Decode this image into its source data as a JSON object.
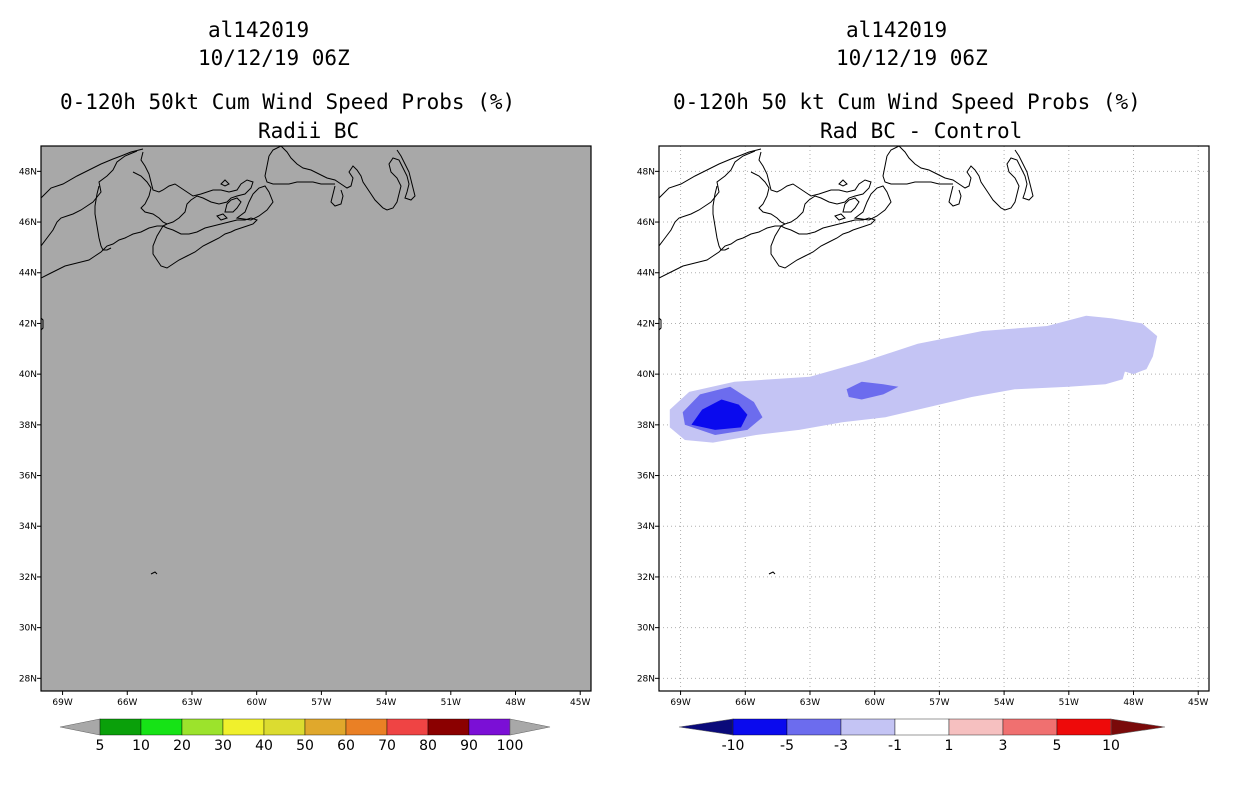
{
  "chart_data": [
    {
      "type": "heatmap",
      "storm_id": "al142019",
      "valid_time": "10/12/19 06Z",
      "title": "0-120h 50kt Cum Wind Speed Probs (%)",
      "subtitle": "Radii BC",
      "lon_ticks": [
        "69W",
        "66W",
        "63W",
        "60W",
        "57W",
        "54W",
        "51W",
        "48W",
        "45W"
      ],
      "lat_ticks": [
        "48N",
        "46N",
        "44N",
        "42N",
        "40N",
        "38N",
        "36N",
        "34N",
        "32N",
        "30N",
        "28N"
      ],
      "lon_range": [
        -70,
        -44.5
      ],
      "lat_range": [
        27.5,
        49
      ],
      "field_fill": "#a8a8a8",
      "field_description_value": "below 5% everywhere",
      "grid": false,
      "colorbar": {
        "levels": [
          "5",
          "10",
          "20",
          "30",
          "40",
          "50",
          "60",
          "70",
          "80",
          "90",
          "100"
        ],
        "colors": [
          "#a8a8a8",
          "#0aa00a",
          "#16e316",
          "#9ce32c",
          "#f0f02c",
          "#dcdc30",
          "#e0a82c",
          "#ea8025",
          "#ef4444",
          "#8b0000",
          "#7b0fd6",
          "#a8a8a8"
        ]
      }
    },
    {
      "type": "heatmap",
      "storm_id": "al142019",
      "valid_time": "10/12/19 06Z",
      "title": "0-120h 50 kt Cum Wind Speed Probs (%)",
      "subtitle": "Rad BC - Control",
      "lon_ticks": [
        "69W",
        "66W",
        "63W",
        "60W",
        "57W",
        "54W",
        "51W",
        "48W",
        "45W"
      ],
      "lat_ticks": [
        "48N",
        "46N",
        "44N",
        "42N",
        "40N",
        "38N",
        "36N",
        "34N",
        "32N",
        "30N",
        "28N"
      ],
      "lon_range": [
        -70,
        -44.5
      ],
      "lat_range": [
        27.5,
        49
      ],
      "grid": true,
      "contours": [
        {
          "range": "-3 to -1",
          "color": "#c4c4f4",
          "polygon_lonlat": [
            [
              -69.5,
              38.6
            ],
            [
              -68.6,
              39.3
            ],
            [
              -66.5,
              39.7
            ],
            [
              -63,
              39.9
            ],
            [
              -60.5,
              40.5
            ],
            [
              -58,
              41.2
            ],
            [
              -55,
              41.7
            ],
            [
              -52,
              41.9
            ],
            [
              -50.2,
              42.3
            ],
            [
              -49,
              42.2
            ],
            [
              -47.6,
              42.0
            ],
            [
              -46.9,
              41.5
            ],
            [
              -47.1,
              40.7
            ],
            [
              -47.4,
              40.2
            ],
            [
              -48,
              40.0
            ],
            [
              -48.4,
              40.1
            ],
            [
              -48.5,
              39.8
            ],
            [
              -49.3,
              39.6
            ],
            [
              -51,
              39.5
            ],
            [
              -53.5,
              39.4
            ],
            [
              -55.5,
              39.1
            ],
            [
              -57.5,
              38.7
            ],
            [
              -59.5,
              38.3
            ],
            [
              -61.5,
              38.1
            ],
            [
              -63.5,
              37.8
            ],
            [
              -65.5,
              37.6
            ],
            [
              -67.5,
              37.3
            ],
            [
              -68.8,
              37.4
            ],
            [
              -69.5,
              37.9
            ]
          ]
        },
        {
          "range": "-5 to -3",
          "color": "#6c6cee",
          "polygon_lonlat": [
            [
              -68.9,
              38.5
            ],
            [
              -68.1,
              39.2
            ],
            [
              -66.7,
              39.5
            ],
            [
              -65.6,
              38.9
            ],
            [
              -65.2,
              38.3
            ],
            [
              -65.9,
              37.8
            ],
            [
              -67.4,
              37.6
            ],
            [
              -68.8,
              38.0
            ]
          ]
        },
        {
          "range": "-5 to -3",
          "color": "#6c6cee",
          "polygon_lonlat": [
            [
              -61.3,
              39.4
            ],
            [
              -60.6,
              39.7
            ],
            [
              -59.6,
              39.6
            ],
            [
              -58.9,
              39.5
            ],
            [
              -59.6,
              39.2
            ],
            [
              -60.6,
              39.0
            ],
            [
              -61.2,
              39.1
            ]
          ]
        },
        {
          "range": "-10 to -5",
          "color": "#0a0aee",
          "polygon_lonlat": [
            [
              -68.5,
              38.0
            ],
            [
              -68.0,
              38.6
            ],
            [
              -67.1,
              39.0
            ],
            [
              -66.3,
              38.8
            ],
            [
              -65.9,
              38.4
            ],
            [
              -66.2,
              37.9
            ],
            [
              -67.4,
              37.8
            ]
          ]
        }
      ],
      "colorbar": {
        "levels": [
          "-10",
          "-5",
          "-3",
          "-1",
          "1",
          "3",
          "5",
          "10"
        ],
        "colors": [
          "#0a0a7a",
          "#0a0aee",
          "#6c6cee",
          "#c4c4f4",
          "#ffffff",
          "#f6c0c0",
          "#f07070",
          "#ee0a0a",
          "#7a0a0a"
        ]
      }
    }
  ]
}
